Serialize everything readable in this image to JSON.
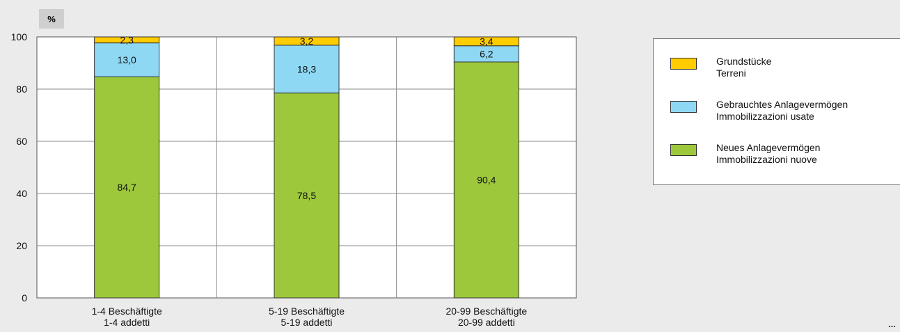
{
  "chart_data": {
    "type": "bar",
    "stacked": true,
    "unit_label": "%",
    "categories": [
      [
        "1-4 Beschäftigte",
        "1-4 addetti"
      ],
      [
        "5-19 Beschäftigte",
        "5-19 addetti"
      ],
      [
        "20-99 Beschäftigte",
        "20-99 addetti"
      ]
    ],
    "series": [
      {
        "name_de": "Neues Anlagevermögen",
        "name_it": "Immobilizzazioni nuove",
        "color": "#9dc83c",
        "values": [
          84.7,
          78.5,
          90.4
        ],
        "labels": [
          "84,7",
          "78,5",
          "90,4"
        ]
      },
      {
        "name_de": "Gebrauchtes Anlagevermögen",
        "name_it": "Immobilizzazioni usate",
        "color": "#8fd8f4",
        "values": [
          13.0,
          18.3,
          6.2
        ],
        "labels": [
          "13,0",
          "18,3",
          "6,2"
        ]
      },
      {
        "name_de": "Grundstücke",
        "name_it": "Terreni",
        "color": "#ffcc00",
        "values": [
          2.3,
          3.2,
          3.4
        ],
        "labels": [
          "2,3",
          "3,2",
          "3,4"
        ]
      }
    ],
    "ylim": [
      0,
      100
    ],
    "yticks": [
      0,
      20,
      40,
      60,
      80,
      100
    ],
    "grid": true,
    "legend": "right"
  },
  "footer": {
    "ellipsis": "..."
  }
}
